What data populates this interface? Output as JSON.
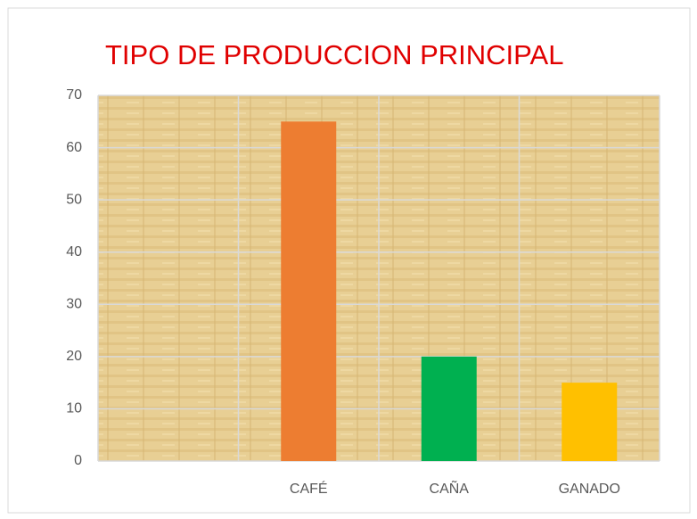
{
  "chart_data": {
    "type": "bar",
    "title": "TIPO DE PRODUCCION PRINCIPAL",
    "categories": [
      null,
      "CAFÉ",
      "CAÑA",
      "GANADO"
    ],
    "values": [
      null,
      65,
      20,
      15
    ],
    "colors": [
      null,
      "#ed7d31",
      "#00b050",
      "#ffc000"
    ],
    "ylim": [
      0,
      70
    ],
    "yticks": [
      0,
      10,
      20,
      30,
      40,
      50,
      60,
      70
    ],
    "grid": true
  }
}
